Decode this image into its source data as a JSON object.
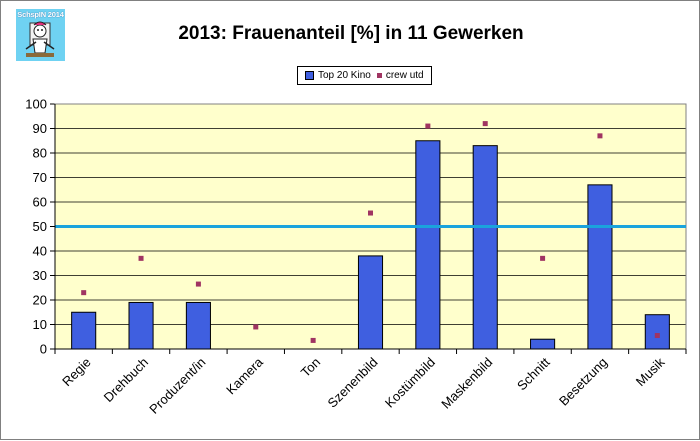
{
  "logo": {
    "text": "SchspIN 2014"
  },
  "chart_data": {
    "type": "bar",
    "title": "2013: Frauenanteil [%] in 11 Gewerken",
    "xlabel": "",
    "ylabel": "",
    "ylim": [
      0,
      100
    ],
    "ytick_step": 10,
    "grid": true,
    "legend_position": "top-center",
    "categories": [
      "Regie",
      "Drehbuch",
      "Produzent/in",
      "Kamera",
      "Ton",
      "Szenenbild",
      "Kostümbild",
      "Maskenbild",
      "Schnitt",
      "Besetzung",
      "Musik"
    ],
    "series": [
      {
        "name": "Top 20 Kino",
        "kind": "bar",
        "color": "#3f5fe0",
        "values": [
          15,
          19,
          19,
          0,
          0,
          38,
          85,
          83,
          4,
          67,
          14
        ]
      },
      {
        "name": "crew utd",
        "kind": "scatter",
        "color": "#a03462",
        "values": [
          23,
          37,
          26.5,
          9,
          3.5,
          55.5,
          91,
          92,
          37,
          87,
          5.5
        ]
      }
    ],
    "reference_line": {
      "value": 50,
      "color": "#1aa3dc"
    },
    "plot_background": "#ffffcc",
    "gridline_color": "#000000"
  }
}
